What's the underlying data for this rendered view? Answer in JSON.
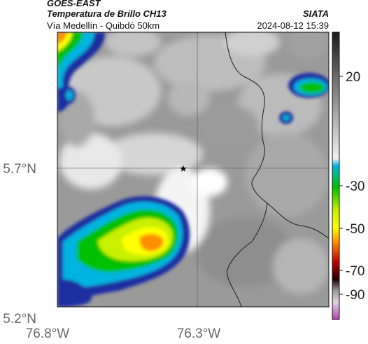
{
  "header": {
    "source": "GOES-EAST",
    "product": "Temperatura de Brillo CH13",
    "organization": "SIATA",
    "route": "Vía Medellín - Quibdó 50km",
    "timestamp": "2024-08-12 15:39"
  },
  "map": {
    "lat_labels": [
      "5.7°N",
      "5.2°N"
    ],
    "lon_labels": [
      "76.8°W",
      "76.3°W"
    ],
    "marker_icon": "star-icon",
    "gridlines": true
  },
  "colorbar": {
    "tick_labels": [
      "20",
      "-30",
      "-50",
      "-70",
      "-90"
    ],
    "colors": [
      "#1a1a1a",
      "#cfcfcf",
      "#00b4e0",
      "#00c000",
      "#ffff00",
      "#ff9000",
      "#c00000",
      "#200000",
      "#b040b0"
    ]
  }
}
